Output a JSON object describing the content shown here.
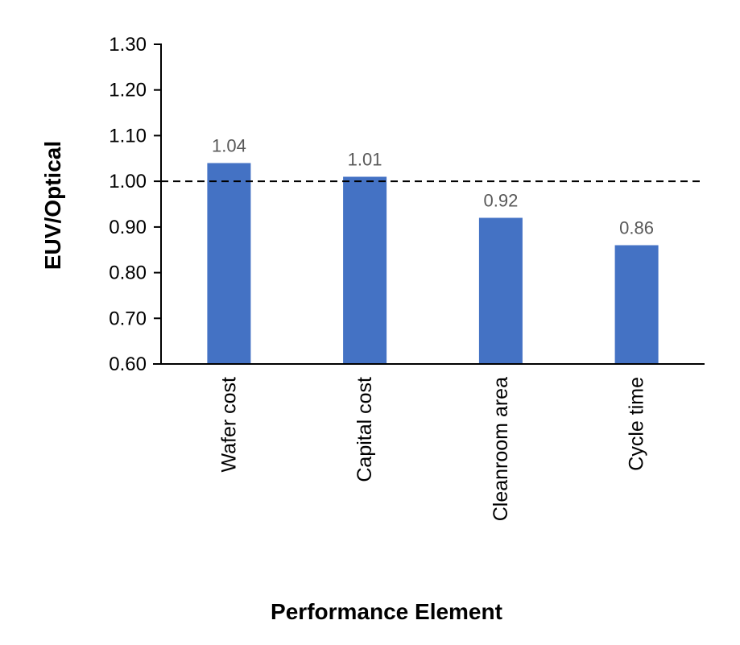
{
  "chart_data": {
    "type": "bar",
    "title": "",
    "xlabel": "Performance Element",
    "ylabel": "EUV/Optical",
    "categories": [
      "Wafer cost",
      "Capital cost",
      "Cleanroom area",
      "Cycle time"
    ],
    "values": [
      1.04,
      1.01,
      0.92,
      0.86
    ],
    "data_labels": [
      "1.04",
      "1.01",
      "0.92",
      "0.86"
    ],
    "ylim": [
      0.6,
      1.3
    ],
    "yticks": [
      0.6,
      0.7,
      0.8,
      0.9,
      1.0,
      1.1,
      1.2,
      1.3
    ],
    "ytick_labels": [
      "0.60",
      "0.70",
      "0.80",
      "0.90",
      "1.00",
      "1.10",
      "1.20",
      "1.30"
    ],
    "reference_line": 1.0,
    "reference_line_style": "dashed",
    "grid": false,
    "legend": "none",
    "bar_color": "#4472C4"
  }
}
